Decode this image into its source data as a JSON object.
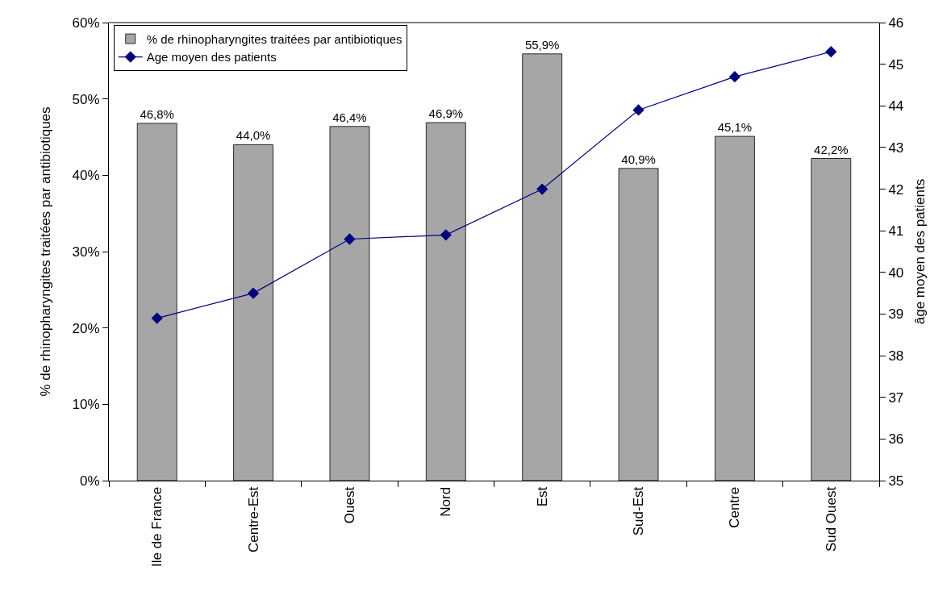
{
  "chart_data": {
    "type": "bar",
    "categories": [
      "Ile de France",
      "Centre-Est",
      "Ouest",
      "Nord",
      "Est",
      "Sud-Est",
      "Centre",
      "Sud Ouest"
    ],
    "series": [
      {
        "name": "% de rhinopharyngites traitées par antibiotiques",
        "color": "#a6a6a6",
        "values": [
          46.8,
          44.0,
          46.4,
          46.9,
          55.9,
          40.9,
          45.1,
          42.2
        ],
        "value_labels": [
          "46,8%",
          "44,0%",
          "46,4%",
          "46,9%",
          "55,9%",
          "40,9%",
          "45,1%",
          "42,2%"
        ]
      },
      {
        "name": "Age moyen des patients",
        "type": "line",
        "axis": "y2",
        "color": "#000080",
        "marker": "diamond",
        "line_style": "solid",
        "values": [
          38.9,
          39.5,
          40.8,
          40.9,
          42.0,
          43.9,
          44.7,
          45.3
        ]
      }
    ],
    "ylabel": "% de rhinopharyngites traitées par antibiotiques",
    "y2label": "âge moyen des patients",
    "ylim": [
      0,
      60
    ],
    "yticks": [
      {
        "value": 0,
        "label": "0%"
      },
      {
        "value": 10,
        "label": "10%"
      },
      {
        "value": 20,
        "label": "20%"
      },
      {
        "value": 30,
        "label": "30%"
      },
      {
        "value": 40,
        "label": "40%"
      },
      {
        "value": 50,
        "label": "50%"
      },
      {
        "value": 60,
        "label": "60%"
      }
    ],
    "y2lim": [
      35,
      46
    ],
    "y2ticks": [
      35,
      36,
      37,
      38,
      39,
      40,
      41,
      42,
      43,
      44,
      45,
      46
    ],
    "legend": "top left"
  }
}
